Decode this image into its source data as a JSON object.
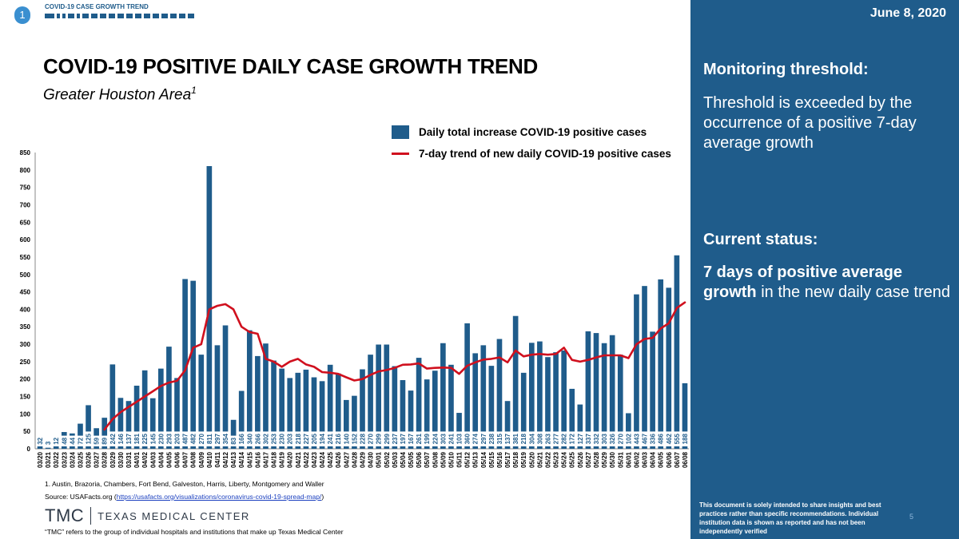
{
  "header": {
    "badge": "1",
    "breadcrumb": "COVID-19 CASE GROWTH TREND",
    "title": "COVID-19 POSITIVE DAILY CASE GROWTH TREND",
    "subtitle": "Greater Houston Area",
    "subtitle_sup": "1"
  },
  "legend": {
    "bar_label": "Daily total increase COVID-19 positive cases",
    "line_label": "7-day trend of new daily COVID-19 positive cases"
  },
  "footer": {
    "note": "1. Austin, Brazoria, Chambers, Fort Bend, Galveston, Harris, Liberty, Montgomery and Waller",
    "source_prefix": "Source: USAFacts.org (",
    "source_link": "https://usafacts.org/visualizations/coronavirus-covid-19-spread-map/",
    "source_suffix": ")",
    "logo_mark": "TMC",
    "logo_name": "TEXAS MEDICAL CENTER",
    "tmc_note": "“TMC” refers to the group of individual hospitals and institutions that make up Texas Medical Center"
  },
  "sidebar": {
    "date": "June 8, 2020",
    "monitoring_heading": "Monitoring threshold:",
    "monitoring_text": "Threshold is exceeded by the occurrence of a positive 7-day average growth",
    "status_heading": "Current status:",
    "status_bold": "7 days of positive average growth",
    "status_rest": " in the new daily case trend",
    "disclaimer": "This document is solely intended to share insights and best practices rather than specific recommendations. Individual institution data is shown as reported and has not been independently verified",
    "page_number": "5"
  },
  "colors": {
    "bar": "#1f5c8b",
    "trend": "#d0101e",
    "sidebar_bg": "#1f5c8b"
  },
  "chart_data": {
    "type": "bar",
    "ylim": [
      0,
      850
    ],
    "yticks": [
      0,
      50,
      100,
      150,
      200,
      250,
      300,
      350,
      400,
      450,
      500,
      550,
      600,
      650,
      700,
      750,
      800,
      850
    ],
    "categories": [
      "03/20",
      "03/21",
      "03/22",
      "03/23",
      "03/24",
      "03/25",
      "03/26",
      "03/27",
      "03/28",
      "03/29",
      "03/30",
      "03/31",
      "04/01",
      "04/02",
      "04/03",
      "04/04",
      "04/05",
      "04/06",
      "04/07",
      "04/08",
      "04/09",
      "04/10",
      "04/11",
      "04/12",
      "04/13",
      "04/14",
      "04/15",
      "04/16",
      "04/17",
      "04/18",
      "04/19",
      "04/20",
      "04/21",
      "04/22",
      "04/23",
      "04/24",
      "04/25",
      "04/26",
      "04/27",
      "04/28",
      "04/29",
      "04/30",
      "05/01",
      "05/02",
      "05/03",
      "05/04",
      "05/05",
      "05/06",
      "05/07",
      "05/08",
      "05/09",
      "05/10",
      "05/11",
      "05/12",
      "05/13",
      "05/14",
      "05/15",
      "05/16",
      "05/17",
      "05/18",
      "05/19",
      "05/20",
      "05/21",
      "05/22",
      "05/23",
      "05/24",
      "05/25",
      "05/26",
      "05/27",
      "05/28",
      "05/29",
      "05/30",
      "05/31",
      "06/01",
      "06/02",
      "06/03",
      "06/04",
      "06/05",
      "06/06",
      "06/07",
      "06/08"
    ],
    "series": [
      {
        "name": "Daily total increase COVID-19 positive cases",
        "type": "bar",
        "values": [
          32,
          3,
          12,
          48,
          44,
          72,
          125,
          59,
          89,
          242,
          146,
          137,
          181,
          225,
          145,
          230,
          293,
          203,
          487,
          482,
          270,
          811,
          297,
          354,
          83,
          166,
          340,
          266,
          302,
          253,
          230,
          203,
          218,
          227,
          205,
          194,
          241,
          216,
          140,
          152,
          228,
          270,
          299,
          299,
          237,
          197,
          167,
          261,
          199,
          224,
          303,
          241,
          103,
          360,
          274,
          297,
          238,
          315,
          137,
          381,
          218,
          304,
          308,
          263,
          277,
          282,
          172,
          127,
          337,
          332,
          303,
          326,
          270,
          102,
          443,
          467,
          336,
          486,
          462,
          555,
          188
        ]
      },
      {
        "name": "7-day trend of new daily COVID-19 positive cases",
        "type": "line",
        "values": [
          null,
          null,
          null,
          null,
          null,
          null,
          null,
          null,
          55,
          85,
          105,
          120,
          135,
          150,
          165,
          180,
          190,
          195,
          225,
          290,
          300,
          400,
          410,
          415,
          400,
          350,
          335,
          330,
          258,
          250,
          235,
          250,
          258,
          242,
          235,
          220,
          218,
          215,
          205,
          196,
          200,
          212,
          222,
          226,
          232,
          241,
          242,
          245,
          230,
          232,
          233,
          232,
          215,
          238,
          248,
          256,
          258,
          262,
          248,
          282,
          265,
          270,
          272,
          270,
          272,
          290,
          255,
          250,
          255,
          262,
          268,
          268,
          268,
          260,
          300,
          315,
          318,
          345,
          360,
          404,
          420
        ]
      }
    ]
  }
}
